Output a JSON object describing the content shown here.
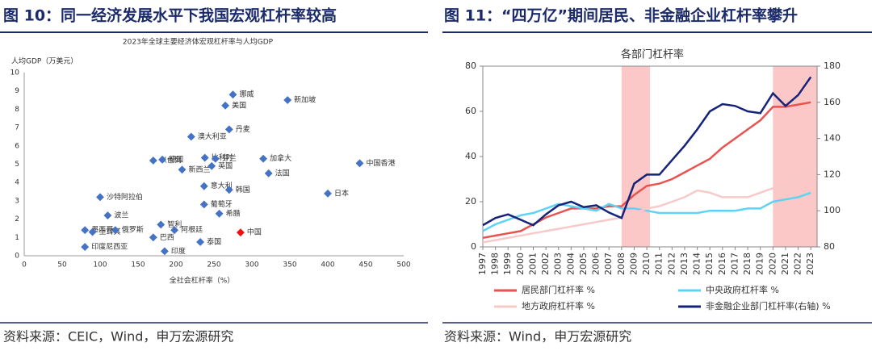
{
  "panels": [
    {
      "heading": "图 10：同一经济发展水平下我国宏观杠杆率较高",
      "source": "资料来源：CEIC，Wind，申万宏源研究"
    },
    {
      "heading": "图 11：“四万亿”期间居民、非金融企业杠杆率攀升",
      "source": "资料来源：Wind，申万宏源研究"
    }
  ],
  "chart_data": [
    {
      "type": "scatter",
      "title": "2023年全球主要经济体宏观杠杆率与人均GDP",
      "xlabel": "全社会杠杆率（%）",
      "ylabel": "人均GDP（万美元）",
      "xlim": [
        0,
        500
      ],
      "xticks": [
        0,
        50,
        100,
        150,
        200,
        250,
        300,
        350,
        400,
        450,
        500
      ],
      "ylim": [
        0,
        10
      ],
      "yticks": [
        0,
        1,
        2,
        3,
        4,
        5,
        6,
        7,
        8,
        9,
        10
      ],
      "grid": false,
      "series": [
        {
          "color": "#4472c4",
          "points": [
            {
              "label": "挪威",
              "x": 275,
              "y": 8.8
            },
            {
              "label": "美国",
              "x": 265,
              "y": 8.2
            },
            {
              "label": "新加坡",
              "x": 347,
              "y": 8.5
            },
            {
              "label": "丹麦",
              "x": 270,
              "y": 6.9
            },
            {
              "label": "澳大利亚",
              "x": 220,
              "y": 6.5
            },
            {
              "label": "以色列",
              "x": 170,
              "y": 5.2
            },
            {
              "label": "德国",
              "x": 182,
              "y": 5.25
            },
            {
              "label": "比利时",
              "x": 238,
              "y": 5.35
            },
            {
              "label": "芬兰",
              "x": 252,
              "y": 5.3
            },
            {
              "label": "加拿大",
              "x": 315,
              "y": 5.3
            },
            {
              "label": "中国香港",
              "x": 442,
              "y": 5.05
            },
            {
              "label": "新西兰",
              "x": 208,
              "y": 4.7
            },
            {
              "label": "英国",
              "x": 247,
              "y": 4.9
            },
            {
              "label": "法国",
              "x": 322,
              "y": 4.5
            },
            {
              "label": "意大利",
              "x": 237,
              "y": 3.8
            },
            {
              "label": "韩国",
              "x": 270,
              "y": 3.6
            },
            {
              "label": "日本",
              "x": 400,
              "y": 3.4
            },
            {
              "label": "沙特阿拉伯",
              "x": 100,
              "y": 3.2
            },
            {
              "label": "葡萄牙",
              "x": 237,
              "y": 2.8
            },
            {
              "label": "希腊",
              "x": 257,
              "y": 2.3
            },
            {
              "label": "墨西哥",
              "x": 80,
              "y": 1.4
            },
            {
              "label": "土耳其",
              "x": 90,
              "y": 1.3
            },
            {
              "label": "波兰",
              "x": 110,
              "y": 2.2
            },
            {
              "label": "俄罗斯",
              "x": 120,
              "y": 1.4
            },
            {
              "label": "智利",
              "x": 180,
              "y": 1.7
            },
            {
              "label": "阿根廷",
              "x": 198,
              "y": 1.4
            },
            {
              "label": "巴西",
              "x": 170,
              "y": 1.0
            },
            {
              "label": "泰国",
              "x": 232,
              "y": 0.75
            },
            {
              "label": "印度尼西亚",
              "x": 80,
              "y": 0.48
            },
            {
              "label": "印度",
              "x": 185,
              "y": 0.25
            }
          ]
        },
        {
          "color": "#ee1111",
          "points": [
            {
              "label": "中国",
              "x": 285,
              "y": 1.27
            }
          ]
        }
      ]
    },
    {
      "type": "line",
      "title": "各部门杠杆率",
      "x": [
        1997,
        1998,
        1999,
        2000,
        2001,
        2002,
        2003,
        2004,
        2005,
        2006,
        2007,
        2008,
        2009,
        2010,
        2011,
        2012,
        2013,
        2014,
        2015,
        2016,
        2017,
        2018,
        2019,
        2020,
        2021,
        2022,
        2023
      ],
      "xlim": [
        1997,
        2023.5
      ],
      "xticks": [
        1997,
        1998,
        1999,
        2000,
        2001,
        2002,
        2003,
        2004,
        2005,
        2006,
        2007,
        2008,
        2009,
        2010,
        2011,
        2012,
        2013,
        2014,
        2015,
        2016,
        2017,
        2018,
        2019,
        2020,
        2021,
        2022,
        2023
      ],
      "ylim": [
        0,
        80
      ],
      "yticks": [
        0,
        20,
        40,
        60,
        80
      ],
      "y2lim": [
        80,
        180
      ],
      "y2ticks": [
        80,
        100,
        120,
        140,
        160,
        180
      ],
      "shading": {
        "color": "#fbb9b9",
        "spans": [
          [
            2008,
            2010.25
          ],
          [
            2020,
            2023.5
          ]
        ]
      },
      "series": [
        {
          "name": "居民部门杠杆率 %",
          "color": "#e8534f",
          "values": [
            4,
            5,
            6,
            7,
            10,
            13,
            15,
            17,
            17,
            17,
            18,
            18,
            23,
            27,
            28,
            30,
            33,
            36,
            39,
            44,
            48,
            52,
            56,
            62,
            62,
            63,
            64
          ]
        },
        {
          "name": "中央政府杠杆率 %",
          "color": "#5fd3f3",
          "values": [
            7,
            10,
            12,
            14,
            15,
            17,
            19,
            18,
            17,
            16,
            19,
            17,
            17,
            16,
            15,
            15,
            15,
            15,
            16,
            16,
            16,
            17,
            17,
            20,
            21,
            22,
            24
          ]
        },
        {
          "name": "地方政府杠杆率 %",
          "color": "#f7c9c9",
          "values": [
            2,
            3,
            4,
            5,
            6,
            7,
            8,
            9,
            10,
            11,
            12,
            13,
            15,
            17,
            18,
            20,
            22,
            25,
            24,
            22,
            22,
            22,
            24,
            26,
            27,
            30,
            33
          ]
        },
        {
          "name": "非金融企业部门杠杆率(右轴) %",
          "color": "#16237a",
          "axis": "y2",
          "values": [
            92,
            96,
            98,
            95,
            92,
            98,
            103,
            105,
            102,
            103,
            99,
            96,
            115,
            120,
            120,
            128,
            136,
            145,
            155,
            159,
            158,
            155,
            154,
            165,
            158,
            164,
            174
          ]
        }
      ]
    }
  ]
}
